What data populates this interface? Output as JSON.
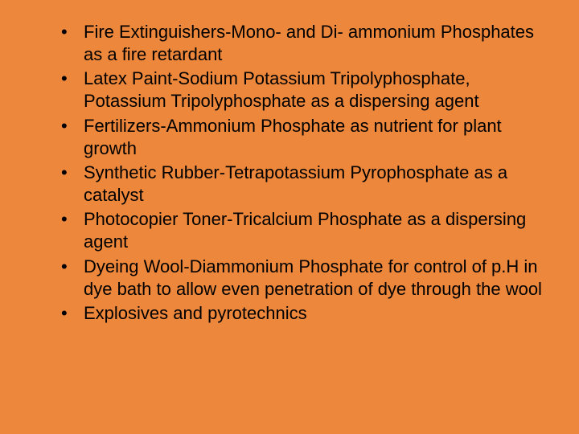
{
  "slide": {
    "background_color": "#ed873b",
    "text_color": "#000000",
    "font_family": "Arial",
    "font_size_pt": 22,
    "line_height": 1.28,
    "bullets": [
      "Fire Extinguishers-Mono- and Di- ammonium Phosphates as a fire retardant",
      "Latex Paint-Sodium Potassium Tripolyphosphate, Potassium Tripolyphosphate as a dispersing agent",
      "Fertilizers-Ammonium Phosphate as nutrient for plant growth",
      "Synthetic Rubber-Tetrapotassium Pyrophosphate as a catalyst",
      "Photocopier Toner-Tricalcium Phosphate as a dispersing agent",
      "Dyeing Wool-Diammonium Phosphate for control of p.H in dye bath to allow even penetration of dye through the wool",
      "Explosives and pyrotechnics"
    ]
  }
}
